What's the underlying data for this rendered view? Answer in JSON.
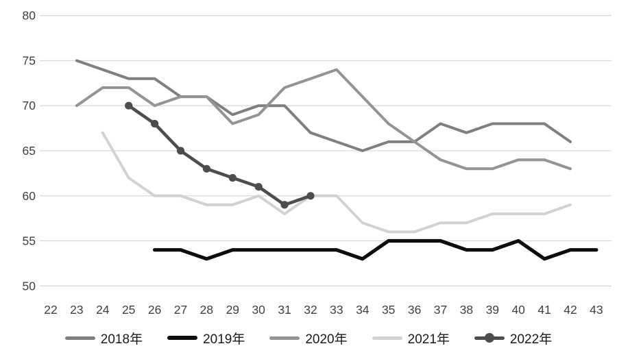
{
  "chart_data": {
    "type": "line",
    "title": "",
    "xlabel": "",
    "ylabel": "",
    "x_axis": {
      "ticks": [
        22,
        23,
        24,
        25,
        26,
        27,
        28,
        29,
        30,
        31,
        32,
        33,
        34,
        35,
        36,
        37,
        38,
        39,
        40,
        41,
        42,
        43
      ]
    },
    "y_axis": {
      "min": 50,
      "max": 80,
      "ticks": [
        50,
        55,
        60,
        65,
        70,
        75,
        80
      ]
    },
    "grid": "horizontal",
    "legend_position": "bottom",
    "series": [
      {
        "name": "2018年",
        "color": "#7f7f7f",
        "stroke_width": 4,
        "marker": false,
        "points": [
          [
            23,
            75
          ],
          [
            24,
            74
          ],
          [
            25,
            73
          ],
          [
            26,
            73
          ],
          [
            27,
            71
          ],
          [
            28,
            71
          ],
          [
            29,
            69
          ],
          [
            30,
            70
          ],
          [
            31,
            70
          ],
          [
            32,
            67
          ],
          [
            33,
            66
          ],
          [
            34,
            65
          ],
          [
            35,
            66
          ],
          [
            36,
            66
          ],
          [
            37,
            68
          ],
          [
            38,
            67
          ],
          [
            39,
            68
          ],
          [
            40,
            68
          ],
          [
            41,
            68
          ],
          [
            42,
            66
          ]
        ]
      },
      {
        "name": "2019年",
        "color": "#0d0d0d",
        "stroke_width": 5.2,
        "marker": false,
        "points": [
          [
            26,
            54
          ],
          [
            27,
            54
          ],
          [
            28,
            53
          ],
          [
            29,
            54
          ],
          [
            30,
            54
          ],
          [
            31,
            54
          ],
          [
            32,
            54
          ],
          [
            33,
            54
          ],
          [
            34,
            53
          ],
          [
            35,
            55
          ],
          [
            36,
            55
          ],
          [
            37,
            55
          ],
          [
            38,
            54
          ],
          [
            39,
            54
          ],
          [
            40,
            55
          ],
          [
            41,
            53
          ],
          [
            42,
            54
          ],
          [
            43,
            54
          ]
        ]
      },
      {
        "name": "2020年",
        "color": "#949494",
        "stroke_width": 4,
        "marker": false,
        "points": [
          [
            23,
            70
          ],
          [
            24,
            72
          ],
          [
            25,
            72
          ],
          [
            26,
            70
          ],
          [
            27,
            71
          ],
          [
            28,
            71
          ],
          [
            29,
            68
          ],
          [
            30,
            69
          ],
          [
            31,
            72
          ],
          [
            32,
            73
          ],
          [
            33,
            74
          ],
          [
            34,
            71
          ],
          [
            35,
            68
          ],
          [
            36,
            66
          ],
          [
            37,
            64
          ],
          [
            38,
            63
          ],
          [
            39,
            63
          ],
          [
            40,
            64
          ],
          [
            41,
            64
          ],
          [
            42,
            63
          ]
        ]
      },
      {
        "name": "2021年",
        "color": "#d2d2d2",
        "stroke_width": 4,
        "marker": false,
        "points": [
          [
            24,
            67
          ],
          [
            25,
            62
          ],
          [
            26,
            60
          ],
          [
            27,
            60
          ],
          [
            28,
            59
          ],
          [
            29,
            59
          ],
          [
            30,
            60
          ],
          [
            31,
            58
          ],
          [
            32,
            60
          ],
          [
            33,
            60
          ],
          [
            34,
            57
          ],
          [
            35,
            56
          ],
          [
            36,
            56
          ],
          [
            37,
            57
          ],
          [
            38,
            57
          ],
          [
            39,
            58
          ],
          [
            40,
            58
          ],
          [
            41,
            58
          ],
          [
            42,
            59
          ]
        ]
      },
      {
        "name": "2022年",
        "color": "#4d4d4d",
        "stroke_width": 4.6,
        "marker": true,
        "marker_radius": 5.6,
        "points": [
          [
            25,
            70
          ],
          [
            26,
            68
          ],
          [
            27,
            65
          ],
          [
            28,
            63
          ],
          [
            29,
            62
          ],
          [
            30,
            61
          ],
          [
            31,
            59
          ],
          [
            32,
            60
          ]
        ]
      }
    ],
    "colors": {
      "gridline": "#d9d9d9",
      "tick_label": "#404040",
      "legend_label": "#1a1a1a",
      "background": "#ffffff"
    }
  }
}
